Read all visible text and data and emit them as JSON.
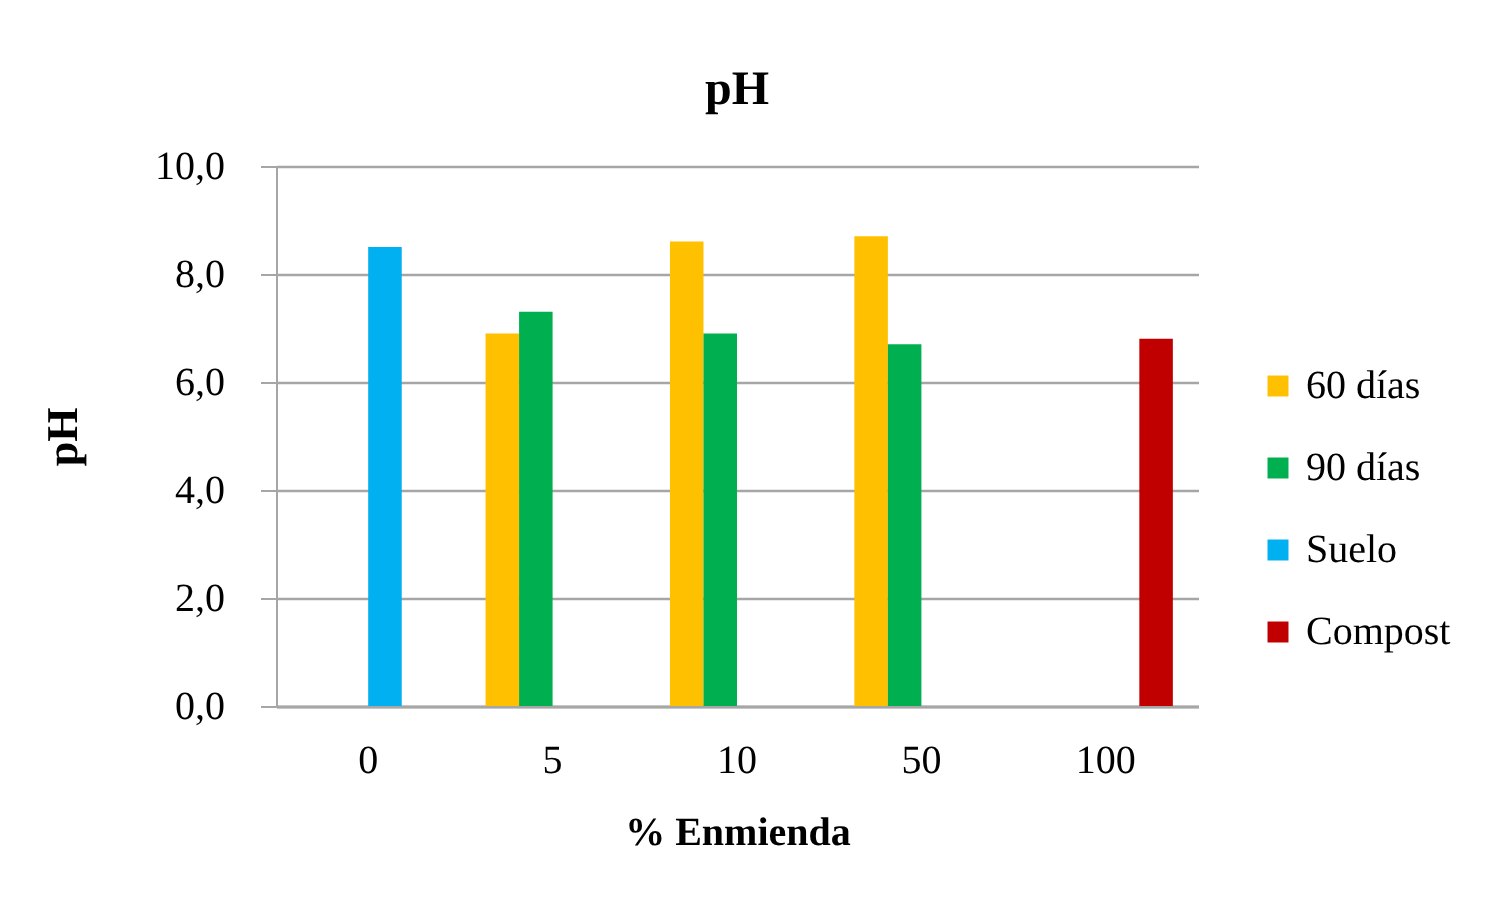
{
  "chart_data": {
    "type": "bar",
    "title": "pH",
    "xlabel": "% Enmienda",
    "ylabel": "pH",
    "categories": [
      "0",
      "5",
      "10",
      "50",
      "100"
    ],
    "series": [
      {
        "name": "60 días",
        "color": "#ffc000",
        "values": [
          null,
          6.9,
          8.6,
          8.7,
          null
        ]
      },
      {
        "name": "90 días",
        "color": "#00b050",
        "values": [
          null,
          7.3,
          6.9,
          6.7,
          null
        ]
      },
      {
        "name": "Suelo",
        "color": "#00b0f0",
        "values": [
          8.5,
          null,
          null,
          null,
          null
        ]
      },
      {
        "name": "Compost",
        "color": "#c00000",
        "values": [
          null,
          null,
          null,
          null,
          6.8
        ]
      }
    ],
    "ylim": [
      0,
      10
    ],
    "yticks": [
      {
        "value": 0,
        "label": "0,0"
      },
      {
        "value": 2,
        "label": "2,0"
      },
      {
        "value": 4,
        "label": "4,0"
      },
      {
        "value": 6,
        "label": "6,0"
      },
      {
        "value": 8,
        "label": "8,0"
      },
      {
        "value": 10,
        "label": "10,0"
      }
    ],
    "grid": "y",
    "legend": "right"
  }
}
